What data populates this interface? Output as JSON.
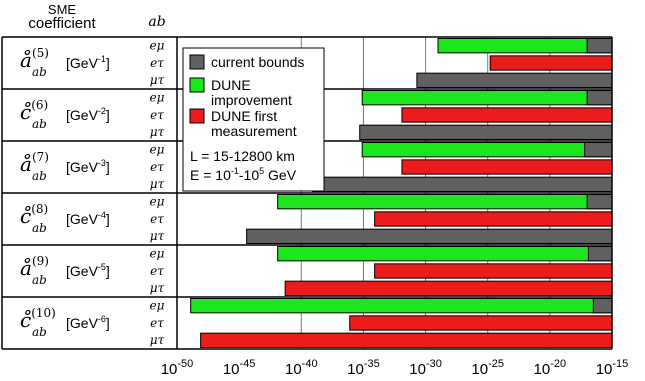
{
  "chart_data": {
    "type": "bar",
    "orientation": "horizontal",
    "log_x": true,
    "xlim": [
      -50,
      -15
    ],
    "xticks": [
      -50,
      -45,
      -40,
      -35,
      -30,
      -25,
      -20,
      -15
    ],
    "xtick_labels": [
      {
        "base": "10",
        "exp": "-50"
      },
      {
        "base": "10",
        "exp": "-45"
      },
      {
        "base": "10",
        "exp": "-40"
      },
      {
        "base": "10",
        "exp": "-35"
      },
      {
        "base": "10",
        "exp": "-30"
      },
      {
        "base": "10",
        "exp": "-25"
      },
      {
        "base": "10",
        "exp": "-20"
      },
      {
        "base": "10",
        "exp": "-15"
      }
    ],
    "vertical_gridlines_at": [
      -40,
      -35,
      -30,
      -25,
      -20
    ],
    "col_header": {
      "line1": "SME",
      "line2": "coefficient",
      "ab": "ab"
    },
    "groups": [
      {
        "coef": "å",
        "sup": "(5)",
        "sub": "ab",
        "unit": "[GeV",
        "unit_exp": "-1",
        "unit_close": "]",
        "rows": [
          {
            "label": "eμ",
            "current": -17,
            "dune_improvement": -29,
            "dune_first": null
          },
          {
            "label": "eτ",
            "current": null,
            "dune_improvement": null,
            "dune_first": -24.8
          },
          {
            "label": "μτ",
            "current": -30.7,
            "dune_improvement": null,
            "dune_first": null
          }
        ]
      },
      {
        "coef": "c̊",
        "sup": "(6)",
        "sub": "ab",
        "unit": "[GeV",
        "unit_exp": "-2",
        "unit_close": "]",
        "rows": [
          {
            "label": "eμ",
            "current": -17,
            "dune_improvement": -35.1,
            "dune_first": null
          },
          {
            "label": "eτ",
            "current": null,
            "dune_improvement": null,
            "dune_first": -31.9
          },
          {
            "label": "μτ",
            "current": -35.3,
            "dune_improvement": null,
            "dune_first": null
          }
        ]
      },
      {
        "coef": "å",
        "sup": "(7)",
        "sub": "ab",
        "unit": "[GeV",
        "unit_exp": "-3",
        "unit_close": "]",
        "rows": [
          {
            "label": "eμ",
            "current": -17.2,
            "dune_improvement": -35.1,
            "dune_first": null
          },
          {
            "label": "eτ",
            "current": null,
            "dune_improvement": null,
            "dune_first": -31.9
          },
          {
            "label": "μτ",
            "current": -39.1,
            "dune_improvement": null,
            "dune_first": null
          }
        ]
      },
      {
        "coef": "c̊",
        "sup": "(8)",
        "sub": "ab",
        "unit": "[GeV",
        "unit_exp": "-4",
        "unit_close": "]",
        "rows": [
          {
            "label": "eμ",
            "current": -17,
            "dune_improvement": -41.9,
            "dune_first": null
          },
          {
            "label": "eτ",
            "current": null,
            "dune_improvement": null,
            "dune_first": -34.1
          },
          {
            "label": "μτ",
            "current": -44.4,
            "dune_improvement": null,
            "dune_first": null
          }
        ]
      },
      {
        "coef": "å",
        "sup": "(9)",
        "sub": "ab",
        "unit": "[GeV",
        "unit_exp": "-5",
        "unit_close": "]",
        "rows": [
          {
            "label": "eμ",
            "current": -16.9,
            "dune_improvement": -41.9,
            "dune_first": null
          },
          {
            "label": "eτ",
            "current": null,
            "dune_improvement": null,
            "dune_first": -34.1
          },
          {
            "label": "μτ",
            "current": null,
            "dune_improvement": null,
            "dune_first": -41.3
          }
        ]
      },
      {
        "coef": "c̊",
        "sup": "(10)",
        "sub": "ab",
        "unit": "[GeV",
        "unit_exp": "-6",
        "unit_close": "]",
        "rows": [
          {
            "label": "eμ",
            "current": -16.5,
            "dune_improvement": -48.9,
            "dune_first": null
          },
          {
            "label": "eτ",
            "current": null,
            "dune_improvement": null,
            "dune_first": -36.1
          },
          {
            "label": "μτ",
            "current": null,
            "dune_improvement": null,
            "dune_first": -48.1
          }
        ]
      }
    ],
    "legend": {
      "placement": "top-left inside plot",
      "items": [
        {
          "key": "current",
          "lines": [
            "current bounds"
          ],
          "color": "#606060"
        },
        {
          "key": "dune_improvement",
          "lines": [
            "DUNE",
            "improvement"
          ],
          "color": "#1ee61e"
        },
        {
          "key": "dune_first",
          "lines": [
            "DUNE first",
            "measurement"
          ],
          "color": "#ec1c1c"
        }
      ],
      "notes": [
        {
          "text": "L = 15-12800 km"
        },
        {
          "text": "E = 10",
          "exp1": "-1",
          "mid": "-10",
          "exp2": "5",
          "tail": " GeV"
        }
      ]
    }
  }
}
